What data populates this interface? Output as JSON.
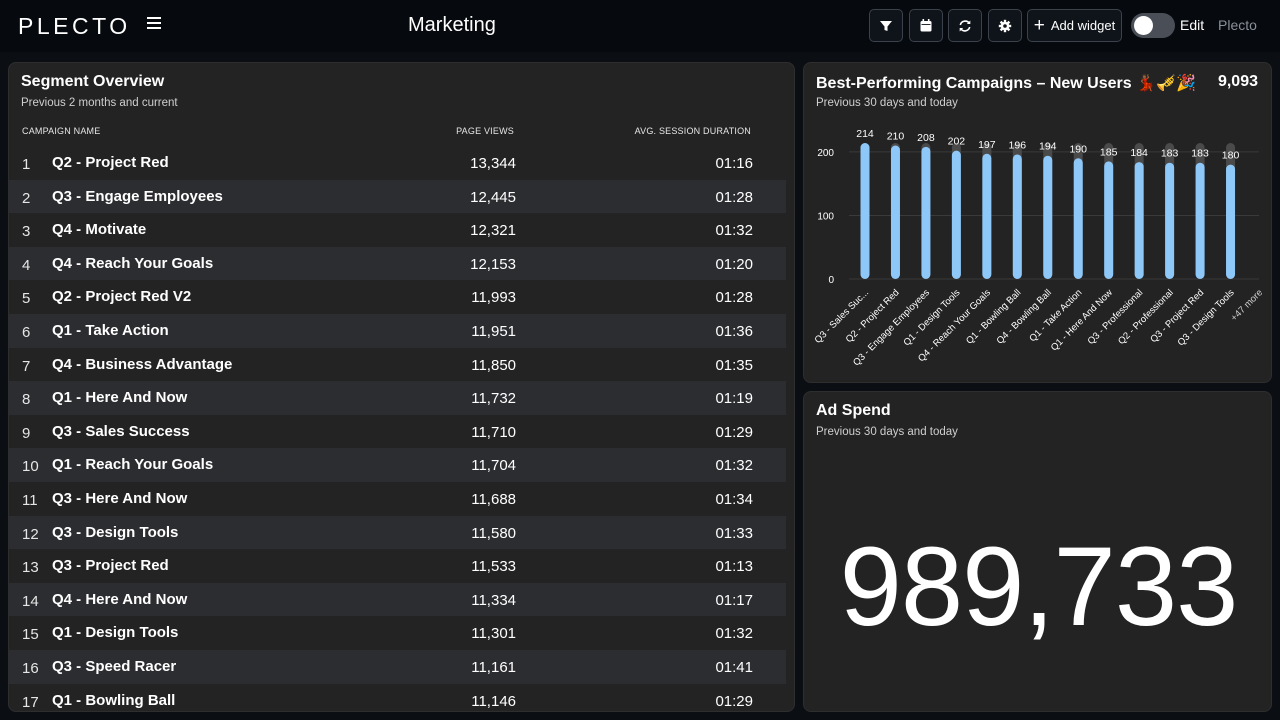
{
  "topbar": {
    "logo": "PLECTO",
    "dashboard_title": "Marketing",
    "add_widget_label": "Add widget",
    "edit_label": "Edit",
    "brand_label": "Plecto"
  },
  "segment": {
    "title": "Segment Overview",
    "subtitle": "Previous 2 months and current",
    "columns": [
      "CAMPAIGN NAME",
      "PAGE VIEWS",
      "AVG. SESSION DURATION"
    ],
    "rows": [
      {
        "rank": "1",
        "name": "Q2 - Project Red",
        "views": "13,344",
        "duration": "01:16"
      },
      {
        "rank": "2",
        "name": "Q3 - Engage Employees",
        "views": "12,445",
        "duration": "01:28"
      },
      {
        "rank": "3",
        "name": "Q4 - Motivate",
        "views": "12,321",
        "duration": "01:32"
      },
      {
        "rank": "4",
        "name": "Q4 - Reach Your Goals",
        "views": "12,153",
        "duration": "01:20"
      },
      {
        "rank": "5",
        "name": "Q2 - Project Red V2",
        "views": "11,993",
        "duration": "01:28"
      },
      {
        "rank": "6",
        "name": "Q1 - Take Action",
        "views": "11,951",
        "duration": "01:36"
      },
      {
        "rank": "7",
        "name": "Q4 - Business Advantage",
        "views": "11,850",
        "duration": "01:35"
      },
      {
        "rank": "8",
        "name": "Q1 - Here And Now",
        "views": "11,732",
        "duration": "01:19"
      },
      {
        "rank": "9",
        "name": "Q3 - Sales Success",
        "views": "11,710",
        "duration": "01:29"
      },
      {
        "rank": "10",
        "name": "Q1 - Reach Your Goals",
        "views": "11,704",
        "duration": "01:32"
      },
      {
        "rank": "11",
        "name": "Q3 - Here And Now",
        "views": "11,688",
        "duration": "01:34"
      },
      {
        "rank": "12",
        "name": "Q3 - Design Tools",
        "views": "11,580",
        "duration": "01:33"
      },
      {
        "rank": "13",
        "name": "Q3 - Project Red",
        "views": "11,533",
        "duration": "01:13"
      },
      {
        "rank": "14",
        "name": "Q4 - Here And Now",
        "views": "11,334",
        "duration": "01:17"
      },
      {
        "rank": "15",
        "name": "Q1 - Design Tools",
        "views": "11,301",
        "duration": "01:32"
      },
      {
        "rank": "16",
        "name": "Q3 - Speed Racer",
        "views": "11,161",
        "duration": "01:41"
      },
      {
        "rank": "17",
        "name": "Q1 - Bowling Ball",
        "views": "11,146",
        "duration": "01:29"
      }
    ]
  },
  "best": {
    "title": "Best-Performing Campaigns – New Users 💃🏾🎺🎉",
    "subtitle": "Previous 30 days and today",
    "total": "9,093"
  },
  "chart_data": {
    "type": "bar",
    "title": "Best-Performing Campaigns – New Users 💃🏾🎺🎉",
    "categories": [
      "Q3 - Sales Suc...",
      "Q2 - Project Red",
      "Q3 - Engage Employees",
      "Q1 - Design Tools",
      "Q4 - Reach Your Goals",
      "Q1 - Bowling Ball",
      "Q4 - Bowling Ball",
      "Q1 - Take Action",
      "Q1 - Here And Now",
      "Q3 - Professional",
      "Q2 - Professional",
      "Q3 - Project Red",
      "Q3 - Design Tools"
    ],
    "values": [
      214,
      210,
      208,
      202,
      197,
      196,
      194,
      190,
      185,
      184,
      183,
      183,
      180
    ],
    "extra_label": "+47 more",
    "yticks": [
      0,
      100,
      200
    ],
    "ylim": [
      0,
      214
    ],
    "grid": true,
    "bar_color": "#8ec8f8",
    "track_color": "#4a4a4a"
  },
  "ad": {
    "title": "Ad Spend",
    "subtitle": "Previous 30 days and today",
    "value": "989,733"
  }
}
